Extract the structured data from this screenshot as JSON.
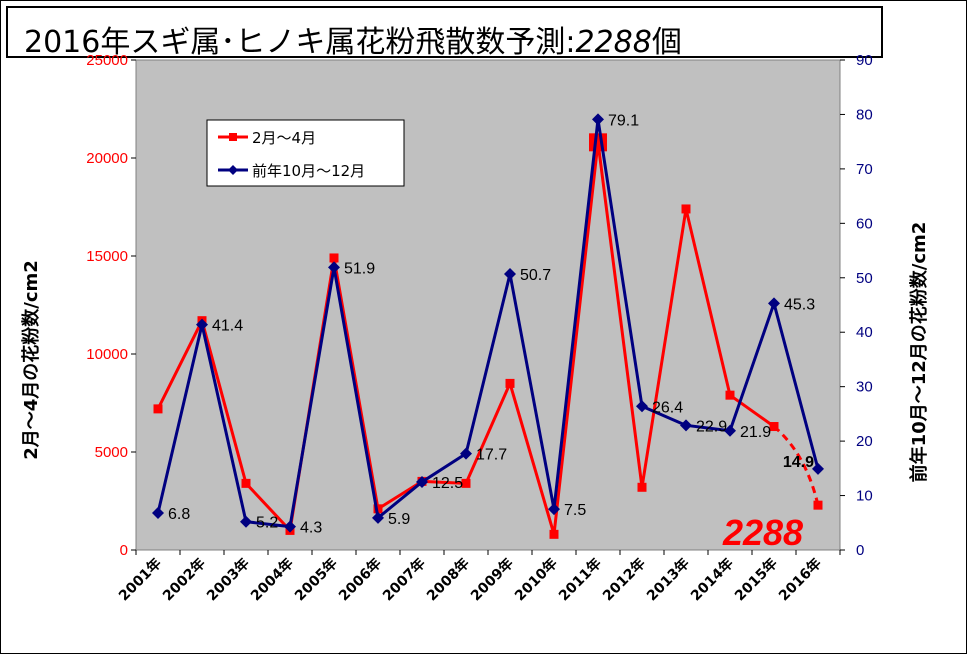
{
  "title": {
    "main": "2016年スギ属･ヒノキ属花粉飛散数予測:",
    "number": "2288",
    "suffix": "個"
  },
  "chart_data": {
    "type": "line",
    "categories": [
      "2001年",
      "2002年",
      "2003年",
      "2004年",
      "2005年",
      "2006年",
      "2007年",
      "2008年",
      "2009年",
      "2010年",
      "2011年",
      "2012年",
      "2013年",
      "2014年",
      "2015年",
      "2016年"
    ],
    "series": [
      {
        "name": "2月～4月",
        "axis": "left",
        "color": "#ff0000",
        "values": [
          7200,
          11700,
          3400,
          1000,
          14900,
          2100,
          3500,
          3400,
          8500,
          800,
          20800,
          3200,
          17400,
          7900,
          6300,
          2288
        ],
        "forecast_from_index": 14
      },
      {
        "name": "前年10月～12月",
        "axis": "right",
        "color": "#000080",
        "values": [
          6.8,
          41.4,
          5.2,
          4.3,
          51.9,
          5.9,
          12.5,
          17.7,
          50.7,
          7.5,
          79.1,
          26.4,
          22.9,
          21.9,
          45.3,
          14.9
        ],
        "labels": [
          "6.8",
          "41.4",
          "5.2",
          "4.3",
          "51.9",
          "5.9",
          "12.5",
          "17.7",
          "50.7",
          "7.5",
          "79.1",
          "26.4",
          "22.9",
          "21.9",
          "45.3",
          "14.9"
        ]
      }
    ],
    "ylabel_left": "2月～4月の花粉数/cm2",
    "ylabel_right": "前年10月～12月の花粉数/cm2",
    "ylim_left": [
      0,
      25000
    ],
    "yticks_left": [
      "0",
      "5000",
      "10000",
      "15000",
      "20000",
      "25000"
    ],
    "ylim_right": [
      0,
      90
    ],
    "yticks_right": [
      "0",
      "10",
      "20",
      "30",
      "40",
      "50",
      "60",
      "70",
      "80",
      "90"
    ],
    "forecast_label": "2288",
    "legend_position": "top-left",
    "background": "#c0c0c0",
    "grid": false
  }
}
